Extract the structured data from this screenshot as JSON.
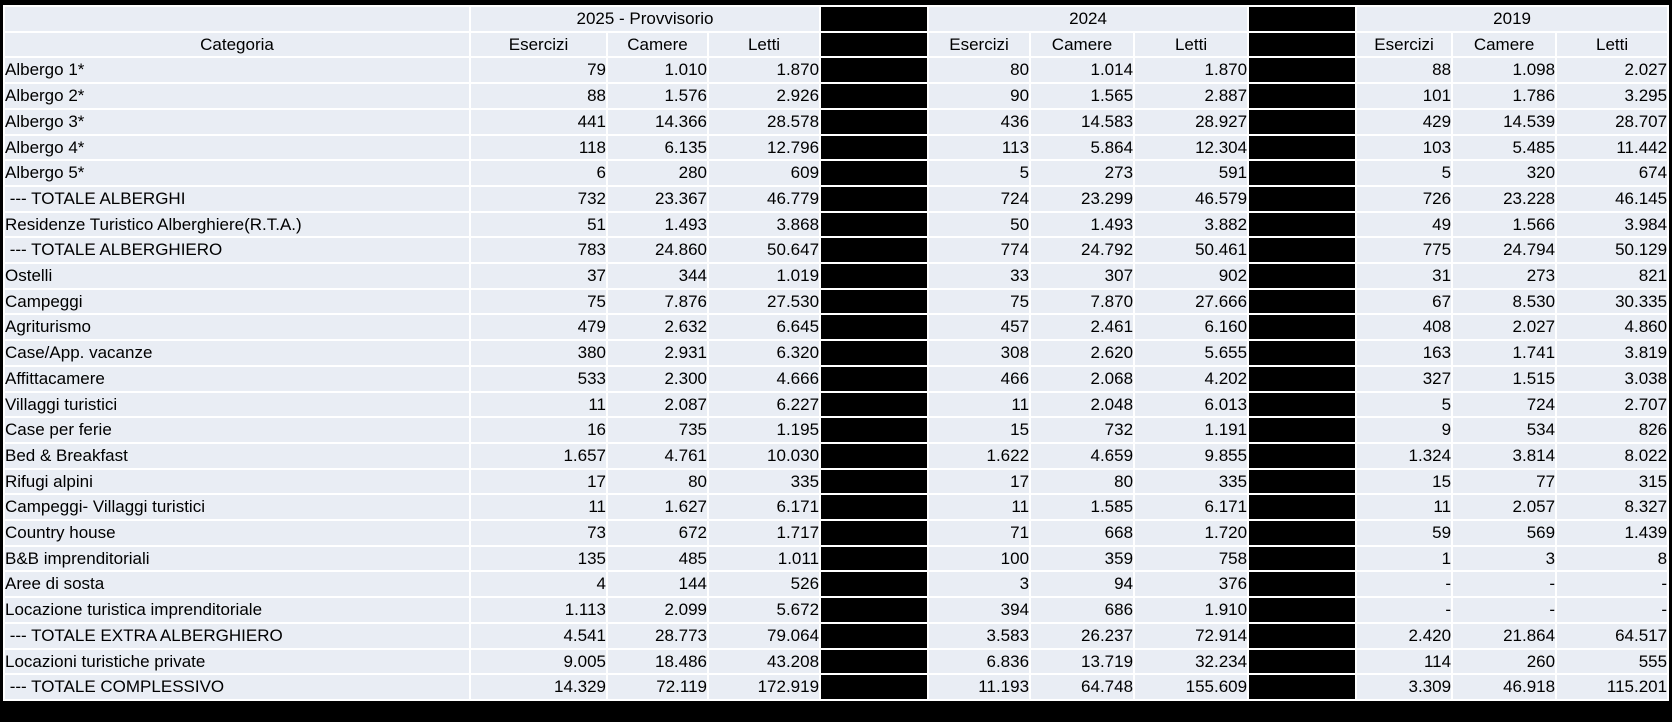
{
  "header": {
    "categoria": "Categoria",
    "corner": "",
    "groups": [
      {
        "year_label": "2025 - Provvisorio",
        "values_key": "values_2025",
        "columns": [
          "Esercizi",
          "Camere",
          "Letti"
        ]
      },
      {
        "year_label": "2024",
        "values_key": "values_2024",
        "columns": [
          "Esercizi",
          "Camere",
          "Letti"
        ]
      },
      {
        "year_label": "2019",
        "values_key": "values_2019",
        "columns": [
          "Esercizi",
          "Camere",
          "Letti"
        ]
      }
    ],
    "redacted_separator_columns": 2
  },
  "rows": [
    {
      "categoria": "Albergo 1*",
      "is_total": false,
      "values_2025": [
        "79",
        "1.010",
        "1.870"
      ],
      "values_2024": [
        "80",
        "1.014",
        "1.870"
      ],
      "values_2019": [
        "88",
        "1.098",
        "2.027"
      ]
    },
    {
      "categoria": "Albergo 2*",
      "is_total": false,
      "values_2025": [
        "88",
        "1.576",
        "2.926"
      ],
      "values_2024": [
        "90",
        "1.565",
        "2.887"
      ],
      "values_2019": [
        "101",
        "1.786",
        "3.295"
      ]
    },
    {
      "categoria": "Albergo 3*",
      "is_total": false,
      "values_2025": [
        "441",
        "14.366",
        "28.578"
      ],
      "values_2024": [
        "436",
        "14.583",
        "28.927"
      ],
      "values_2019": [
        "429",
        "14.539",
        "28.707"
      ]
    },
    {
      "categoria": "Albergo 4*",
      "is_total": false,
      "values_2025": [
        "118",
        "6.135",
        "12.796"
      ],
      "values_2024": [
        "113",
        "5.864",
        "12.304"
      ],
      "values_2019": [
        "103",
        "5.485",
        "11.442"
      ]
    },
    {
      "categoria": "Albergo 5*",
      "is_total": false,
      "values_2025": [
        "6",
        "280",
        "609"
      ],
      "values_2024": [
        "5",
        "273",
        "591"
      ],
      "values_2019": [
        "5",
        "320",
        "674"
      ]
    },
    {
      "categoria": " --- TOTALE ALBERGHI",
      "is_total": true,
      "values_2025": [
        "732",
        "23.367",
        "46.779"
      ],
      "values_2024": [
        "724",
        "23.299",
        "46.579"
      ],
      "values_2019": [
        "726",
        "23.228",
        "46.145"
      ]
    },
    {
      "categoria": "Residenze Turistico Alberghiere(R.T.A.)",
      "is_total": false,
      "values_2025": [
        "51",
        "1.493",
        "3.868"
      ],
      "values_2024": [
        "50",
        "1.493",
        "3.882"
      ],
      "values_2019": [
        "49",
        "1.566",
        "3.984"
      ]
    },
    {
      "categoria": " --- TOTALE ALBERGHIERO",
      "is_total": true,
      "values_2025": [
        "783",
        "24.860",
        "50.647"
      ],
      "values_2024": [
        "774",
        "24.792",
        "50.461"
      ],
      "values_2019": [
        "775",
        "24.794",
        "50.129"
      ]
    },
    {
      "categoria": "Ostelli",
      "is_total": false,
      "values_2025": [
        "37",
        "344",
        "1.019"
      ],
      "values_2024": [
        "33",
        "307",
        "902"
      ],
      "values_2019": [
        "31",
        "273",
        "821"
      ]
    },
    {
      "categoria": "Campeggi",
      "is_total": false,
      "values_2025": [
        "75",
        "7.876",
        "27.530"
      ],
      "values_2024": [
        "75",
        "7.870",
        "27.666"
      ],
      "values_2019": [
        "67",
        "8.530",
        "30.335"
      ]
    },
    {
      "categoria": "Agriturismo",
      "is_total": false,
      "values_2025": [
        "479",
        "2.632",
        "6.645"
      ],
      "values_2024": [
        "457",
        "2.461",
        "6.160"
      ],
      "values_2019": [
        "408",
        "2.027",
        "4.860"
      ]
    },
    {
      "categoria": "Case/App. vacanze",
      "is_total": false,
      "values_2025": [
        "380",
        "2.931",
        "6.320"
      ],
      "values_2024": [
        "308",
        "2.620",
        "5.655"
      ],
      "values_2019": [
        "163",
        "1.741",
        "3.819"
      ]
    },
    {
      "categoria": "Affittacamere",
      "is_total": false,
      "values_2025": [
        "533",
        "2.300",
        "4.666"
      ],
      "values_2024": [
        "466",
        "2.068",
        "4.202"
      ],
      "values_2019": [
        "327",
        "1.515",
        "3.038"
      ]
    },
    {
      "categoria": "Villaggi turistici",
      "is_total": false,
      "values_2025": [
        "11",
        "2.087",
        "6.227"
      ],
      "values_2024": [
        "11",
        "2.048",
        "6.013"
      ],
      "values_2019": [
        "5",
        "724",
        "2.707"
      ]
    },
    {
      "categoria": "Case per ferie",
      "is_total": false,
      "values_2025": [
        "16",
        "735",
        "1.195"
      ],
      "values_2024": [
        "15",
        "732",
        "1.191"
      ],
      "values_2019": [
        "9",
        "534",
        "826"
      ]
    },
    {
      "categoria": "Bed & Breakfast",
      "is_total": false,
      "values_2025": [
        "1.657",
        "4.761",
        "10.030"
      ],
      "values_2024": [
        "1.622",
        "4.659",
        "9.855"
      ],
      "values_2019": [
        "1.324",
        "3.814",
        "8.022"
      ]
    },
    {
      "categoria": "Rifugi alpini",
      "is_total": false,
      "values_2025": [
        "17",
        "80",
        "335"
      ],
      "values_2024": [
        "17",
        "80",
        "335"
      ],
      "values_2019": [
        "15",
        "77",
        "315"
      ]
    },
    {
      "categoria": "Campeggi- Villaggi turistici",
      "is_total": false,
      "values_2025": [
        "11",
        "1.627",
        "6.171"
      ],
      "values_2024": [
        "11",
        "1.585",
        "6.171"
      ],
      "values_2019": [
        "11",
        "2.057",
        "8.327"
      ]
    },
    {
      "categoria": "Country house",
      "is_total": false,
      "values_2025": [
        "73",
        "672",
        "1.717"
      ],
      "values_2024": [
        "71",
        "668",
        "1.720"
      ],
      "values_2019": [
        "59",
        "569",
        "1.439"
      ]
    },
    {
      "categoria": "B&B imprenditoriali",
      "is_total": false,
      "values_2025": [
        "135",
        "485",
        "1.011"
      ],
      "values_2024": [
        "100",
        "359",
        "758"
      ],
      "values_2019": [
        "1",
        "3",
        "8"
      ]
    },
    {
      "categoria": "Aree di sosta",
      "is_total": false,
      "values_2025": [
        "4",
        "144",
        "526"
      ],
      "values_2024": [
        "3",
        "94",
        "376"
      ],
      "values_2019": [
        "-",
        "-",
        "-"
      ]
    },
    {
      "categoria": "Locazione turistica imprenditoriale",
      "is_total": false,
      "values_2025": [
        "1.113",
        "2.099",
        "5.672"
      ],
      "values_2024": [
        "394",
        "686",
        "1.910"
      ],
      "values_2019": [
        "-",
        "-",
        "-"
      ]
    },
    {
      "categoria": " --- TOTALE EXTRA ALBERGHIERO",
      "is_total": true,
      "values_2025": [
        "4.541",
        "28.773",
        "79.064"
      ],
      "values_2024": [
        "3.583",
        "26.237",
        "72.914"
      ],
      "values_2019": [
        "2.420",
        "21.864",
        "64.517"
      ]
    },
    {
      "categoria": "Locazioni turistiche private",
      "is_total": false,
      "values_2025": [
        "9.005",
        "18.486",
        "43.208"
      ],
      "values_2024": [
        "6.836",
        "13.719",
        "32.234"
      ],
      "values_2019": [
        "114",
        "260",
        "555"
      ]
    },
    {
      "categoria": " --- TOTALE COMPLESSIVO",
      "is_total": true,
      "values_2025": [
        "14.329",
        "72.119",
        "172.919"
      ],
      "values_2024": [
        "11.193",
        "64.748",
        "155.609"
      ],
      "values_2019": [
        "3.309",
        "46.918",
        "115.201"
      ]
    }
  ],
  "colors": {
    "cell_background": "#e9edf4",
    "grid": "#ffffff",
    "frame": "#000000",
    "redaction": "#000000",
    "text": "#000000"
  }
}
